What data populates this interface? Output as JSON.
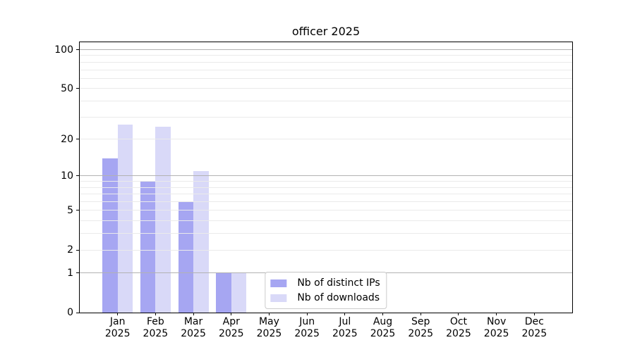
{
  "chart_data": {
    "type": "bar",
    "title": "officer 2025",
    "categories": [
      "Jan",
      "Feb",
      "Mar",
      "Apr",
      "May",
      "Jun",
      "Jul",
      "Aug",
      "Sep",
      "Oct",
      "Nov",
      "Dec"
    ],
    "x_year_label": "2025",
    "series": [
      {
        "name": "Nb of distinct IPs",
        "color": "#a6a6f2",
        "values": [
          14,
          9,
          6,
          1,
          0,
          0,
          0,
          0,
          0,
          0,
          0,
          0
        ]
      },
      {
        "name": "Nb of downloads",
        "color": "#d9d9f8",
        "values": [
          26,
          25,
          11,
          1,
          0,
          0,
          0,
          0,
          0,
          0,
          0,
          0
        ]
      }
    ],
    "y_axis": {
      "scale": "log10(value+1)",
      "ticks": [
        0,
        1,
        2,
        5,
        10,
        20,
        50,
        100
      ],
      "major_gridlines": [
        1,
        10,
        100
      ],
      "minor_gridlines": [
        2,
        3,
        4,
        5,
        6,
        7,
        8,
        9,
        20,
        30,
        40,
        50,
        60,
        70,
        80,
        90
      ],
      "ylim": [
        0,
        114
      ]
    },
    "x_axis": {
      "xlim": [
        -1,
        12
      ]
    },
    "legend": {
      "position": "lower center"
    },
    "colors": {
      "major_grid": "#b2b2b2",
      "minor_grid": "#eaeaea",
      "axis": "#000000",
      "background": "#ffffff"
    }
  }
}
